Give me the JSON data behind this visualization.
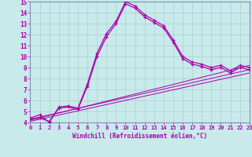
{
  "xlabel": "Windchill (Refroidissement éolien,°C)",
  "background_color": "#c8eaea",
  "line_color": "#aa00aa",
  "grid_color": "#aacece",
  "spine_color": "#8888bb",
  "xlim": [
    0,
    23
  ],
  "ylim": [
    4,
    15
  ],
  "xticks": [
    0,
    1,
    2,
    3,
    4,
    5,
    6,
    7,
    8,
    9,
    10,
    11,
    12,
    13,
    14,
    15,
    16,
    17,
    18,
    19,
    20,
    21,
    22,
    23
  ],
  "yticks": [
    4,
    5,
    6,
    7,
    8,
    9,
    10,
    11,
    12,
    13,
    14,
    15
  ],
  "line1_x": [
    0,
    1,
    2,
    3,
    4,
    5,
    6,
    7,
    8,
    9,
    10,
    11,
    12,
    13,
    14,
    15,
    16,
    17,
    18,
    19,
    20,
    21,
    22,
    23
  ],
  "line1_y": [
    4.4,
    4.7,
    4.0,
    5.4,
    5.5,
    5.3,
    7.5,
    10.3,
    12.1,
    13.2,
    15.0,
    14.6,
    13.8,
    13.3,
    12.8,
    11.5,
    10.0,
    9.5,
    9.3,
    9.0,
    9.2,
    8.7,
    9.2,
    9.0
  ],
  "line2_x": [
    0,
    1,
    2,
    3,
    4,
    5,
    6,
    7,
    8,
    9,
    10,
    11,
    12,
    13,
    14,
    15,
    16,
    17,
    18,
    19,
    20,
    21,
    22,
    23
  ],
  "line2_y": [
    4.3,
    4.4,
    4.1,
    5.3,
    5.4,
    5.2,
    7.3,
    10.0,
    11.8,
    13.0,
    14.8,
    14.4,
    13.6,
    13.1,
    12.6,
    11.3,
    9.8,
    9.3,
    9.1,
    8.8,
    9.0,
    8.5,
    9.0,
    8.8
  ],
  "line3_x": [
    0,
    23
  ],
  "line3_y": [
    4.3,
    8.8
  ],
  "line4_x": [
    0,
    23
  ],
  "line4_y": [
    4.2,
    9.2
  ],
  "line5_x": [
    0,
    23
  ],
  "line5_y": [
    4.1,
    8.5
  ]
}
